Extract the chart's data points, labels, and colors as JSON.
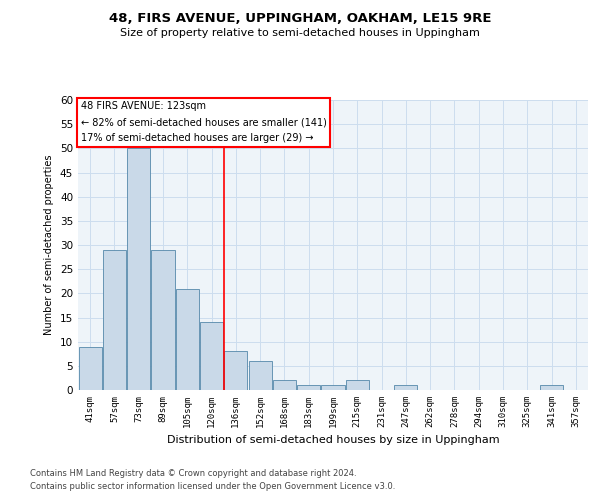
{
  "title": "48, FIRS AVENUE, UPPINGHAM, OAKHAM, LE15 9RE",
  "subtitle": "Size of property relative to semi-detached houses in Uppingham",
  "xlabel": "Distribution of semi-detached houses by size in Uppingham",
  "ylabel": "Number of semi-detached properties",
  "footer1": "Contains HM Land Registry data © Crown copyright and database right 2024.",
  "footer2": "Contains public sector information licensed under the Open Government Licence v3.0.",
  "categories": [
    "41sqm",
    "57sqm",
    "73sqm",
    "89sqm",
    "105sqm",
    "120sqm",
    "136sqm",
    "152sqm",
    "168sqm",
    "183sqm",
    "199sqm",
    "215sqm",
    "231sqm",
    "247sqm",
    "262sqm",
    "278sqm",
    "294sqm",
    "310sqm",
    "325sqm",
    "341sqm",
    "357sqm"
  ],
  "values": [
    9,
    29,
    50,
    29,
    21,
    14,
    8,
    6,
    2,
    1,
    1,
    2,
    0,
    1,
    0,
    0,
    0,
    0,
    0,
    1,
    0
  ],
  "bar_color": "#c9d9e8",
  "bar_edge_color": "#5588aa",
  "vline_x": 5.5,
  "vline_color": "red",
  "annotation_text": "48 FIRS AVENUE: 123sqm\n← 82% of semi-detached houses are smaller (141)\n17% of semi-detached houses are larger (29) →",
  "annotation_box_color": "white",
  "annotation_box_edge_color": "red",
  "ylim": [
    0,
    60
  ],
  "yticks": [
    0,
    5,
    10,
    15,
    20,
    25,
    30,
    35,
    40,
    45,
    50,
    55,
    60
  ],
  "grid_color": "#ccddee",
  "bg_color": "#eef4f9"
}
